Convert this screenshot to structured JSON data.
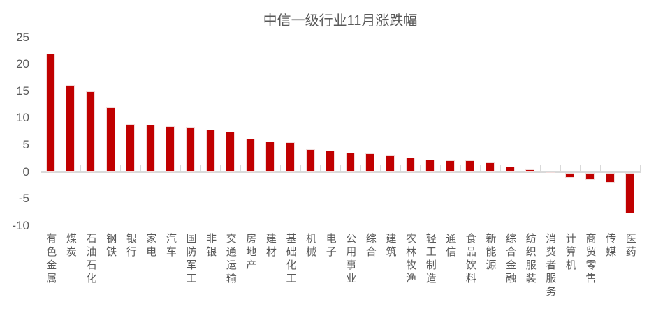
{
  "chart_data": {
    "type": "bar",
    "title": "中信一级行业11月涨跌幅",
    "categories": [
      "有色金属",
      "煤炭",
      "石油石化",
      "钢铁",
      "银行",
      "家电",
      "汽车",
      "国防军工",
      "非银",
      "交通运输",
      "房地产",
      "建材",
      "基础化工",
      "机械",
      "电子",
      "公用事业",
      "综合",
      "建筑",
      "农林牧渔",
      "轻工制造",
      "通信",
      "食品饮料",
      "新能源",
      "综合金融",
      "纺织服装",
      "消费者服务",
      "计算机",
      "商贸零售",
      "传媒",
      "医药"
    ],
    "values": [
      22.0,
      16.1,
      14.9,
      12.0,
      8.9,
      8.8,
      8.5,
      8.3,
      7.9,
      7.4,
      6.2,
      5.6,
      5.5,
      4.2,
      3.9,
      3.5,
      3.4,
      3.0,
      2.7,
      2.3,
      2.2,
      2.1,
      1.7,
      1.0,
      0.5,
      0.1,
      -1.0,
      -1.4,
      -1.9,
      -7.6
    ],
    "ylabel": "",
    "xlabel": "",
    "ylim": [
      -10,
      25
    ],
    "yticks": [
      25,
      20,
      15,
      10,
      5,
      0,
      -5,
      -10
    ],
    "grid": false,
    "legend": null,
    "colors": {
      "bar": "#C00000",
      "bar_border": "#F2DCDB",
      "axis": "#D9D9D9",
      "tick_label": "#595959",
      "title": "#595959"
    }
  }
}
